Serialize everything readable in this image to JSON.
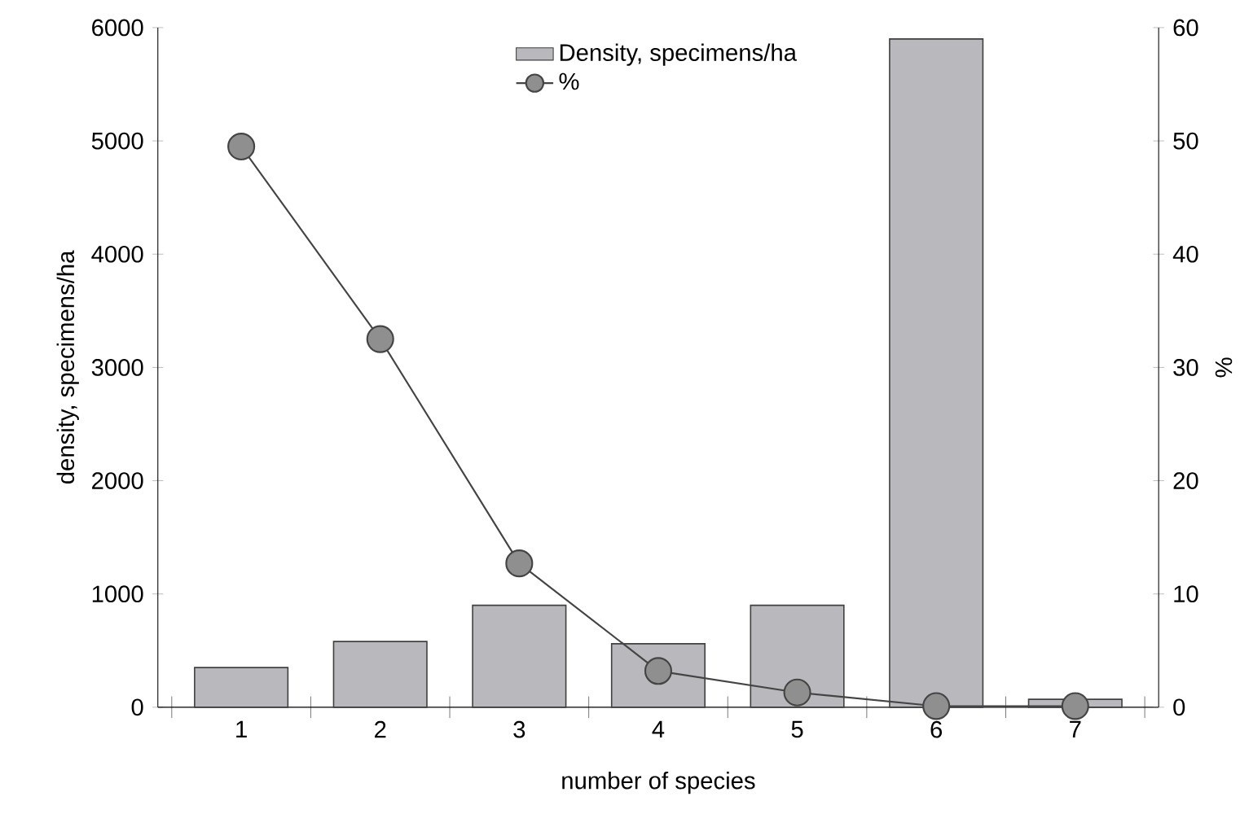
{
  "chart_data": {
    "type": "bar",
    "xlabel": "number of species",
    "ylabel": "density, specimens/ha",
    "y2label": "%",
    "categories": [
      "1",
      "2",
      "3",
      "4",
      "5",
      "6",
      "7"
    ],
    "series": [
      {
        "name": "Density, specimens/ha",
        "color": "#b9b9bd",
        "values": [
          350,
          580,
          900,
          560,
          900,
          5900,
          70
        ]
      },
      {
        "name": "%",
        "type": "line",
        "axis": "y2",
        "color": "#444444",
        "marker": "circle",
        "values": [
          49.5,
          32.5,
          12.7,
          3.2,
          1.3,
          0.1,
          0.1
        ]
      }
    ],
    "ylim": [
      0,
      6000
    ],
    "yticks": [
      0,
      1000,
      2000,
      3000,
      4000,
      5000,
      6000
    ],
    "y2lim": [
      0,
      60
    ],
    "y2ticks": [
      0,
      10,
      20,
      30,
      40,
      50,
      60
    ],
    "legend": "top",
    "grid": false
  }
}
